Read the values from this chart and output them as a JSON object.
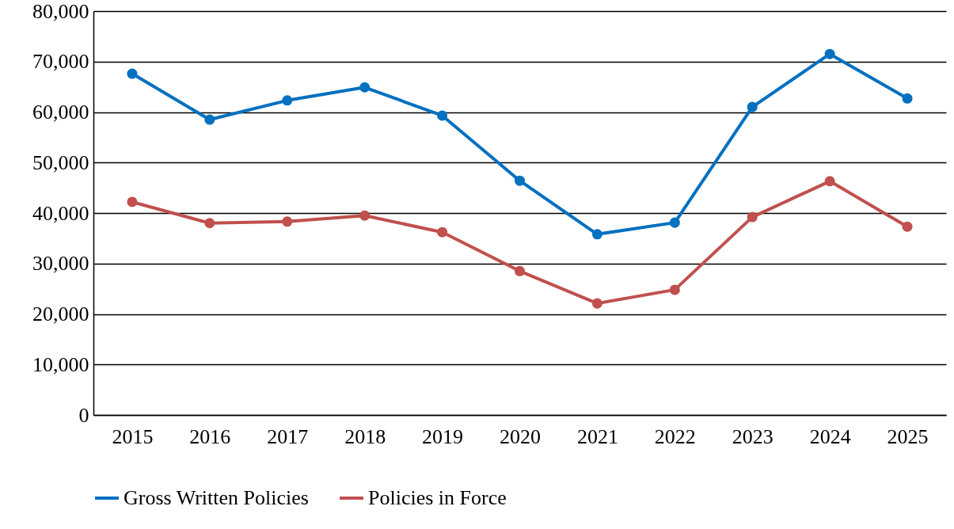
{
  "chart_data": {
    "type": "line",
    "categories": [
      "2015",
      "2016",
      "2017",
      "2018",
      "2019",
      "2020",
      "2021",
      "2022",
      "2023",
      "2024",
      "2025"
    ],
    "series": [
      {
        "name": "Gross Written Policies",
        "color": "#0070c0",
        "values": [
          67600,
          58500,
          62300,
          64900,
          59300,
          46400,
          35800,
          38100,
          61000,
          71500,
          62700
        ]
      },
      {
        "name": "Policies in Force",
        "color": "#c0504d",
        "values": [
          42200,
          38000,
          38300,
          39500,
          36200,
          28500,
          22100,
          24800,
          39200,
          46300,
          37300
        ]
      }
    ],
    "ylim": [
      0,
      80000
    ],
    "yticks": [
      0,
      {
        "value": 10000,
        "label": "10,000"
      },
      {
        "value": 20000,
        "label": "20,000"
      },
      {
        "value": 30000,
        "label": "30,000"
      },
      {
        "value": 40000,
        "label": "40,000"
      },
      {
        "value": 50000,
        "label": "50,000"
      },
      {
        "value": 60000,
        "label": "60,000"
      },
      {
        "value": 70000,
        "label": "70,000"
      },
      {
        "value": 80000,
        "label": "80,000"
      }
    ],
    "grid": "y",
    "legend": "bottom",
    "marker": "circle",
    "line_style": "solid"
  }
}
